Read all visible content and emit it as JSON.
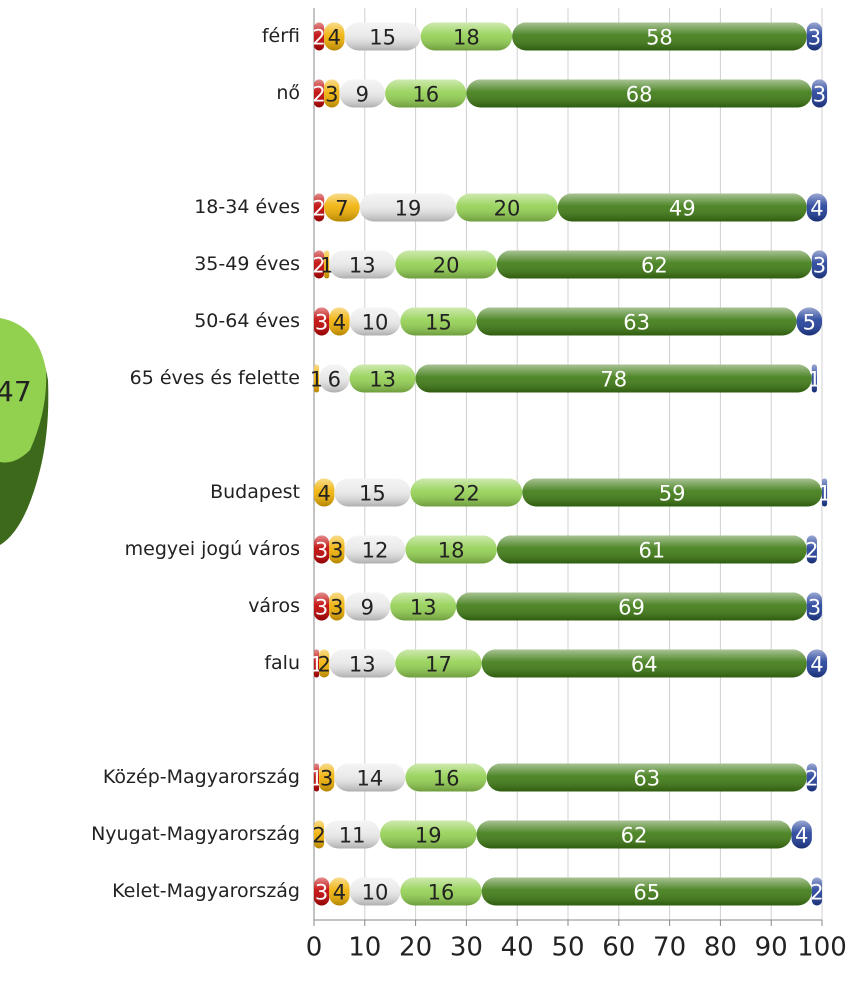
{
  "fragment_label": "47",
  "chart_data": {
    "type": "stacked-bar-horizontal",
    "categories": [
      "férfi",
      "nő",
      null,
      "18-34 éves",
      "35-49 éves",
      "50-64 éves",
      "65 éves és felette",
      null,
      "Budapest",
      "megyei jogú város",
      "város",
      "falu",
      null,
      "Közép-Magyarország",
      "Nyugat-Magyarország",
      "Kelet-Magyarország"
    ],
    "series": [
      {
        "color": "#c00000",
        "values": [
          2,
          2,
          null,
          2,
          2,
          3,
          null,
          null,
          null,
          3,
          3,
          1,
          null,
          1,
          null,
          3
        ]
      },
      {
        "color": "#f0b000",
        "values": [
          4,
          3,
          null,
          7,
          1,
          4,
          1,
          null,
          4,
          3,
          3,
          2,
          null,
          3,
          2,
          4
        ]
      },
      {
        "color": "#e8e8e8",
        "values": [
          15,
          9,
          null,
          19,
          13,
          10,
          6,
          null,
          15,
          12,
          9,
          13,
          null,
          14,
          11,
          10
        ]
      },
      {
        "color": "#92d050",
        "values": [
          18,
          16,
          null,
          20,
          20,
          15,
          13,
          null,
          22,
          18,
          13,
          17,
          null,
          16,
          19,
          16
        ]
      },
      {
        "color": "#3d7a12",
        "values": [
          58,
          68,
          null,
          49,
          62,
          63,
          78,
          null,
          59,
          61,
          69,
          64,
          null,
          63,
          62,
          65
        ]
      },
      {
        "color": "#1f3d99",
        "values": [
          3,
          3,
          null,
          4,
          3,
          5,
          1,
          null,
          1,
          2,
          3,
          4,
          null,
          2,
          4,
          2
        ]
      }
    ],
    "xlim": [
      0,
      100
    ],
    "xticks": [
      0,
      10,
      20,
      30,
      40,
      50,
      60,
      70,
      80,
      90,
      100
    ],
    "grid": true
  }
}
